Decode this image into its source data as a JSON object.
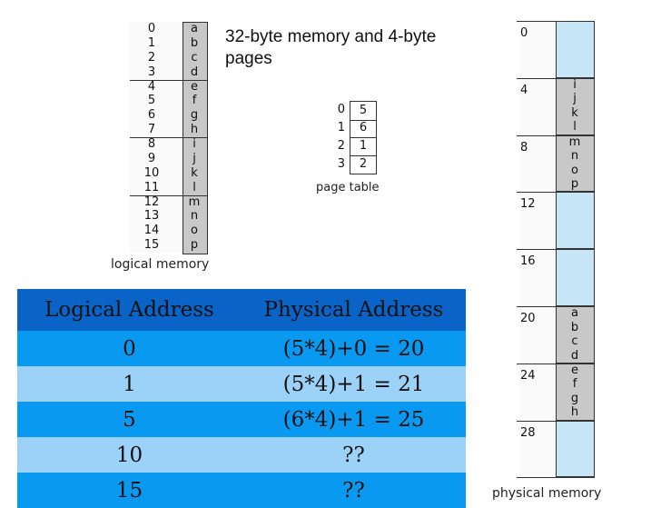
{
  "title": "32-byte memory and 4-byte pages",
  "logical_memory": {
    "caption": "logical memory",
    "indices": [
      "0",
      "1",
      "2",
      "3",
      "4",
      "5",
      "6",
      "7",
      "8",
      "9",
      "10",
      "11",
      "12",
      "13",
      "14",
      "15"
    ],
    "values": [
      "a",
      "b",
      "c",
      "d",
      "e",
      "f",
      "g",
      "h",
      "i",
      "j",
      "k",
      "l",
      "m",
      "n",
      "o",
      "p"
    ]
  },
  "page_table": {
    "caption": "page table",
    "indices": [
      "0",
      "1",
      "2",
      "3"
    ],
    "frames": [
      "5",
      "6",
      "1",
      "2"
    ]
  },
  "physical_memory": {
    "caption": "physical memory",
    "addresses": [
      "0",
      "4",
      "8",
      "12",
      "16",
      "20",
      "24",
      "28"
    ],
    "frames": [
      {
        "letters": [],
        "filled": false
      },
      {
        "letters": [
          "i",
          "j",
          "k",
          "l"
        ],
        "filled": true
      },
      {
        "letters": [
          "m",
          "n",
          "o",
          "p"
        ],
        "filled": true
      },
      {
        "letters": [],
        "filled": false
      },
      {
        "letters": [],
        "filled": false
      },
      {
        "letters": [
          "a",
          "b",
          "c",
          "d"
        ],
        "filled": true
      },
      {
        "letters": [
          "e",
          "f",
          "g",
          "h"
        ],
        "filled": true
      },
      {
        "letters": [],
        "filled": false
      }
    ]
  },
  "address_table": {
    "headers": [
      "Logical Address",
      "Physical Address"
    ],
    "rows": [
      [
        "0",
        "(5*4)+0 = 20"
      ],
      [
        "1",
        "(5*4)+1 = 21"
      ],
      [
        "5",
        "(6*4)+1 = 25"
      ],
      [
        "10",
        "??"
      ],
      [
        "15",
        "??"
      ]
    ]
  },
  "colors": {
    "cell_gray": "#c8c8c8",
    "frame_blue": "#c6e6f8",
    "header_blue": "#0a64c8",
    "row_dark": "#0a99f0",
    "row_light": "#9dd2f8"
  }
}
